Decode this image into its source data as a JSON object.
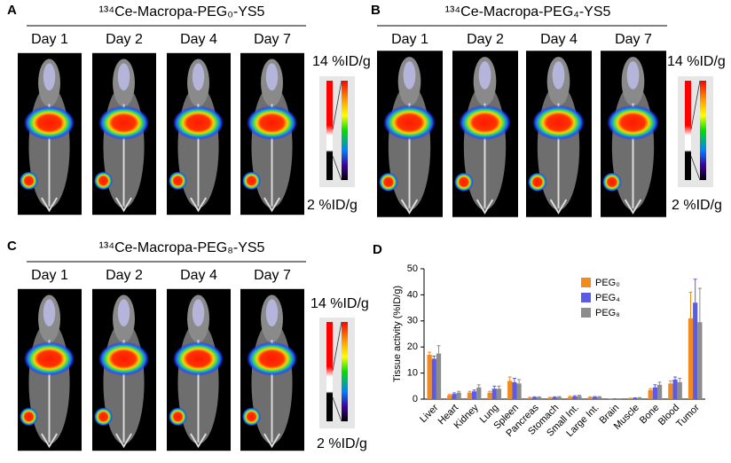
{
  "panels": [
    {
      "letter": "A",
      "title": "¹³⁴Ce-Macropa-PEG₀-YS5",
      "days": [
        "Day 1",
        "Day 2",
        "Day 4",
        "Day 7"
      ],
      "scale_max": "14 %ID/g",
      "scale_min": "2 %ID/g"
    },
    {
      "letter": "B",
      "title": "¹³⁴Ce-Macropa-PEG₄-YS5",
      "days": [
        "Day 1",
        "Day 2",
        "Day 4",
        "Day 7"
      ],
      "scale_max": "14 %ID/g",
      "scale_min": "2 %ID/g"
    },
    {
      "letter": "C",
      "title": "¹³⁴Ce-Macropa-PEG₈-YS5",
      "days": [
        "Day 1",
        "Day 2",
        "Day 4",
        "Day 7"
      ],
      "scale_max": "14 %ID/g",
      "scale_min": "2 %ID/g"
    }
  ],
  "chart_data": {
    "letter": "D",
    "type": "bar",
    "ylabel": "Tissue activity (%ID/g)",
    "categories": [
      "Liver",
      "Heart",
      "Kidney",
      "Lung",
      "Spleen",
      "Pancreas",
      "Stomach",
      "Small Int.",
      "Large Int.",
      "Brain",
      "Muscle",
      "Bone",
      "Blood",
      "Tumor"
    ],
    "ylim": [
      0,
      50
    ],
    "yticks": [
      0,
      10,
      20,
      30,
      40,
      50
    ],
    "legend": "upper right",
    "series": [
      {
        "name": "PEG₀",
        "color": "#f28a1d",
        "values": [
          17,
          1.5,
          2.5,
          2.5,
          7,
          0.5,
          0.5,
          0.8,
          0.7,
          0.1,
          0.3,
          3.5,
          6,
          31
        ],
        "errors": [
          1,
          0.3,
          0.5,
          0.5,
          1.5,
          0.2,
          0.2,
          0.3,
          0.2,
          0.05,
          0.1,
          0.5,
          1,
          10
        ]
      },
      {
        "name": "PEG₄",
        "color": "#5b5be8",
        "values": [
          15.5,
          2,
          3,
          4,
          6.5,
          0.7,
          0.7,
          1,
          0.8,
          0.1,
          0.4,
          4.5,
          7.5,
          37
        ],
        "errors": [
          1,
          0.4,
          0.5,
          1,
          1.5,
          0.2,
          0.2,
          0.3,
          0.2,
          0.05,
          0.1,
          1,
          1,
          9
        ]
      },
      {
        "name": "PEG₈",
        "color": "#8c8c8c",
        "values": [
          17.5,
          2.5,
          4.5,
          4,
          6,
          0.7,
          0.8,
          1.2,
          0.8,
          0.1,
          0.5,
          5.5,
          6.5,
          29.5
        ],
        "errors": [
          3,
          0.5,
          1,
          1,
          1.5,
          0.2,
          0.2,
          0.3,
          0.2,
          0.05,
          0.1,
          1,
          1.5,
          13
        ]
      }
    ]
  }
}
